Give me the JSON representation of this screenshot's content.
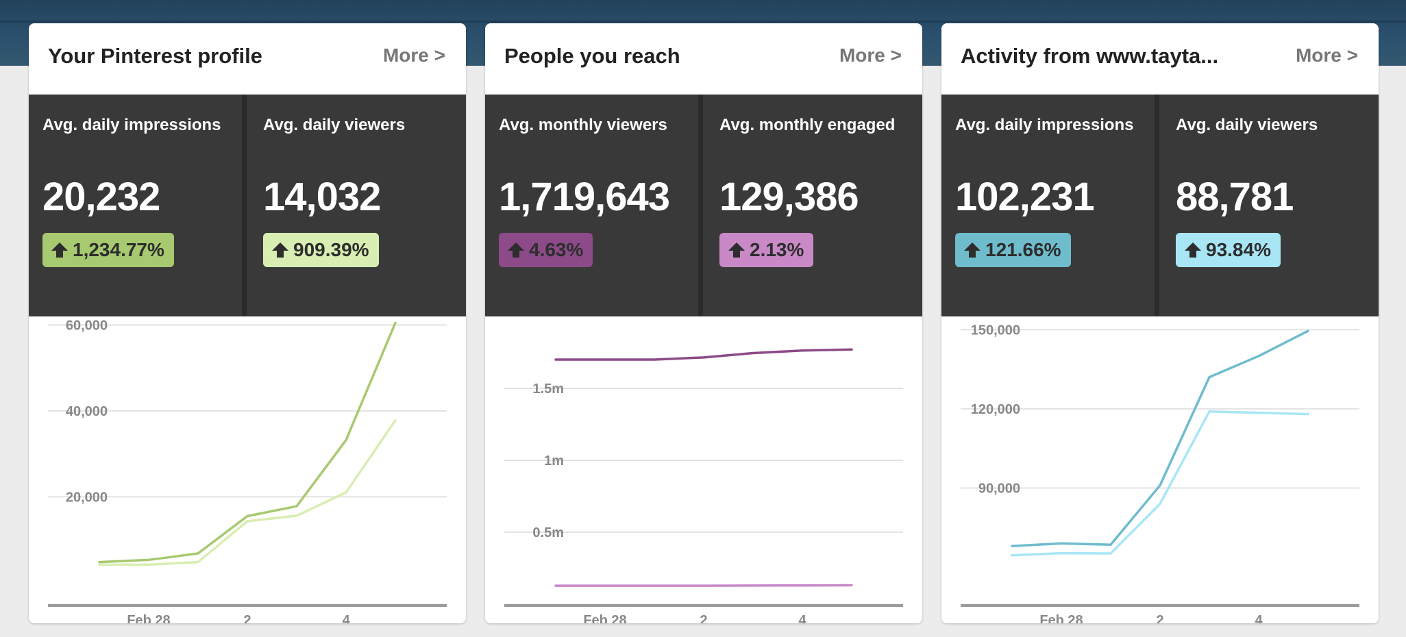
{
  "cards": [
    {
      "title": "Your Pinterest profile",
      "more": "More >",
      "stats": [
        {
          "label": "Avg. daily impressions",
          "value": "20,232",
          "change": "1,234.77%",
          "badge_color": "#a7c96f"
        },
        {
          "label": "Avg. daily viewers",
          "value": "14,032",
          "change": "909.39%",
          "badge_color": "#d8eeb2"
        }
      ]
    },
    {
      "title": "People you reach",
      "more": "More >",
      "stats": [
        {
          "label": "Avg. monthly viewers",
          "value": "1,719,643",
          "change": "4.63%",
          "badge_color": "#8c4a88"
        },
        {
          "label": "Avg. monthly engaged",
          "value": "129,386",
          "change": "2.13%",
          "badge_color": "#c889c6"
        }
      ]
    },
    {
      "title": "Activity from www.tayta...",
      "more": "More >",
      "stats": [
        {
          "label": "Avg. daily impressions",
          "value": "102,231",
          "change": "121.66%",
          "badge_color": "#6fbccd"
        },
        {
          "label": "Avg. daily viewers",
          "value": "88,781",
          "change": "93.84%",
          "badge_color": "#a8e6f6"
        }
      ]
    }
  ],
  "chart_data": [
    {
      "type": "line",
      "x": [
        0,
        1,
        2,
        3,
        4,
        5,
        6
      ],
      "x_tick_labels": [
        "Feb 28",
        "2",
        "4"
      ],
      "x_tick_positions": [
        1,
        3,
        5
      ],
      "ylim": [
        -5000,
        62000
      ],
      "y_ticks": [
        20000,
        40000,
        60000
      ],
      "y_tick_labels": [
        "20,000",
        "40,000",
        "60,000"
      ],
      "series": [
        {
          "name": "Avg. daily impressions",
          "color": "#a7c96f",
          "values": [
            4800,
            5300,
            6800,
            15500,
            17800,
            33200,
            60500
          ]
        },
        {
          "name": "Avg. daily viewers",
          "color": "#d8eeb2",
          "values": [
            4200,
            4200,
            4800,
            14300,
            15600,
            21000,
            37800
          ]
        }
      ]
    },
    {
      "type": "line",
      "x": [
        0,
        1,
        2,
        3,
        4,
        5,
        6
      ],
      "x_tick_labels": [
        "Feb 28",
        "2",
        "4"
      ],
      "x_tick_positions": [
        1,
        3,
        5
      ],
      "ylim": [
        0,
        2000000
      ],
      "y_ticks": [
        500000,
        1000000,
        1500000
      ],
      "y_tick_labels": [
        "0.5m",
        "1m",
        "1.5m"
      ],
      "series": [
        {
          "name": "Avg. monthly viewers",
          "color": "#8c4a88",
          "values": [
            1700000,
            1700000,
            1700000,
            1715000,
            1745000,
            1763000,
            1770000
          ]
        },
        {
          "name": "Avg. monthly engaged",
          "color": "#c889c6",
          "values": [
            128000,
            128000,
            128000,
            128000,
            129000,
            130000,
            131000
          ]
        }
      ]
    },
    {
      "type": "line",
      "x": [
        0,
        1,
        2,
        3,
        4,
        5,
        6
      ],
      "x_tick_labels": [
        "Feb 28",
        "2",
        "4"
      ],
      "x_tick_positions": [
        1,
        3,
        5
      ],
      "ylim": [
        46000,
        155000
      ],
      "y_ticks": [
        90000,
        120000,
        150000
      ],
      "y_tick_labels": [
        "90,000",
        "120,000",
        "150,000"
      ],
      "series": [
        {
          "name": "Avg. daily impressions",
          "color": "#6fbccd",
          "values": [
            68000,
            69000,
            68500,
            91000,
            132000,
            140000,
            149500
          ]
        },
        {
          "name": "Avg. daily viewers",
          "color": "#a8e6f6",
          "values": [
            64500,
            65300,
            65200,
            84000,
            119000,
            118500,
            118000
          ]
        }
      ]
    }
  ]
}
